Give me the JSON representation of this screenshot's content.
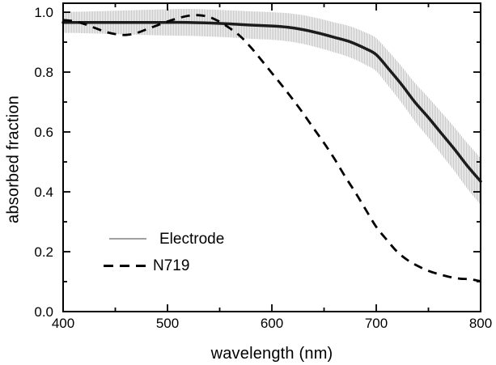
{
  "figure": {
    "background_color": "#ffffff",
    "frame_color": "#000000"
  },
  "chart_data": {
    "type": "line",
    "title": "",
    "xlabel": "wavelength (nm)",
    "ylabel": "absorbed  fraction",
    "xlim": [
      400,
      800
    ],
    "ylim": [
      0,
      1.03
    ],
    "grid": false,
    "frame": true,
    "tick_direction": "in",
    "x_major_ticks": [
      400,
      500,
      600,
      700,
      800
    ],
    "x_major_tick_labels": [
      "400",
      "500",
      "600",
      "700",
      "800"
    ],
    "x_minor_ticks": [
      450,
      550,
      650,
      750
    ],
    "y_major_ticks": [
      0.0,
      0.2,
      0.4,
      0.6,
      0.8,
      1.0
    ],
    "y_major_tick_labels": [
      "0.0",
      "0.2",
      "0.4",
      "0.6",
      "0.8",
      "1.0"
    ],
    "y_minor_ticks": [
      0.1,
      0.3,
      0.5,
      0.7,
      0.9
    ],
    "legend": {
      "position": "lower-left-inside",
      "entries": [
        {
          "label": "Electrode",
          "line_style": "solid",
          "line_color": "#a0a0a0"
        },
        {
          "label": "N719",
          "line_style": "dashed",
          "line_color": "#000000"
        }
      ]
    },
    "series": [
      {
        "name": "Electrode",
        "style": "solid-with-error-band",
        "line_color": "#1c1c1c",
        "line_width": 3.5,
        "error_bar_color": "#c5c5c5",
        "x": [
          400,
          420,
          440,
          460,
          480,
          500,
          520,
          540,
          560,
          580,
          600,
          615,
          630,
          645,
          660,
          675,
          690,
          700,
          712,
          725,
          737,
          750,
          762,
          775,
          787,
          800
        ],
        "y": [
          0.966,
          0.966,
          0.966,
          0.966,
          0.966,
          0.966,
          0.966,
          0.964,
          0.961,
          0.957,
          0.954,
          0.95,
          0.942,
          0.93,
          0.916,
          0.901,
          0.878,
          0.858,
          0.81,
          0.755,
          0.7,
          0.648,
          0.597,
          0.542,
          0.488,
          0.435
        ],
        "yerr": [
          0.035,
          0.036,
          0.038,
          0.04,
          0.042,
          0.044,
          0.045,
          0.045,
          0.045,
          0.046,
          0.046,
          0.047,
          0.048,
          0.049,
          0.05,
          0.052,
          0.054,
          0.055,
          0.058,
          0.061,
          0.064,
          0.067,
          0.07,
          0.073,
          0.076,
          0.078
        ]
      },
      {
        "name": "N719",
        "style": "dashed",
        "line_color": "#000000",
        "line_width": 2.8,
        "dash_pattern": [
          11,
          8
        ],
        "x": [
          400,
          410,
          420,
          430,
          440,
          450,
          460,
          470,
          480,
          490,
          500,
          510,
          520,
          530,
          540,
          550,
          560,
          570,
          580,
          590,
          600,
          610,
          620,
          630,
          640,
          650,
          660,
          670,
          680,
          690,
          700,
          710,
          720,
          730,
          740,
          750,
          760,
          770,
          780,
          790,
          800
        ],
        "y": [
          0.974,
          0.97,
          0.961,
          0.948,
          0.935,
          0.927,
          0.924,
          0.93,
          0.943,
          0.956,
          0.969,
          0.98,
          0.988,
          0.99,
          0.984,
          0.968,
          0.946,
          0.919,
          0.882,
          0.84,
          0.797,
          0.754,
          0.709,
          0.662,
          0.612,
          0.563,
          0.51,
          0.452,
          0.398,
          0.34,
          0.283,
          0.24,
          0.2,
          0.172,
          0.152,
          0.136,
          0.125,
          0.116,
          0.11,
          0.108,
          0.101
        ]
      }
    ]
  }
}
